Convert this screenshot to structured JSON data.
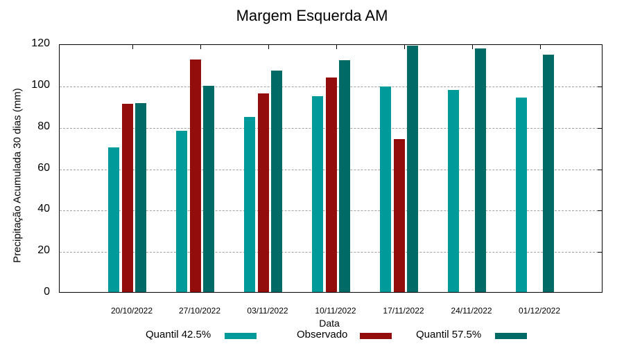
{
  "chart_data": {
    "type": "bar",
    "title": "Margem Esquerda AM",
    "xlabel": "Data",
    "ylabel": "Precipitação Acumulada 30 dias (mm)",
    "ylim": [
      0,
      120
    ],
    "yticks": [
      "0",
      "20",
      "40",
      "60",
      "80",
      "100",
      "120"
    ],
    "grid": true,
    "legend_position": "bottom",
    "categories": [
      "20/10/2022",
      "27/10/2022",
      "03/11/2022",
      "10/11/2022",
      "17/11/2022",
      "24/11/2022",
      "01/12/2022"
    ],
    "series": [
      {
        "name": "Quantil 42.5%",
        "color": "#009a9a",
        "values": [
          69.7,
          78.0,
          84.7,
          94.7,
          99.3,
          97.7,
          94.0
        ]
      },
      {
        "name": "Observado",
        "color": "#930d0d",
        "values": [
          91.0,
          112.3,
          96.0,
          103.7,
          74.0,
          null,
          null
        ]
      },
      {
        "name": "Quantil 57.5%",
        "color": "#006a66",
        "values": [
          91.3,
          99.7,
          107.0,
          112.0,
          119.0,
          117.7,
          114.7
        ]
      }
    ]
  }
}
